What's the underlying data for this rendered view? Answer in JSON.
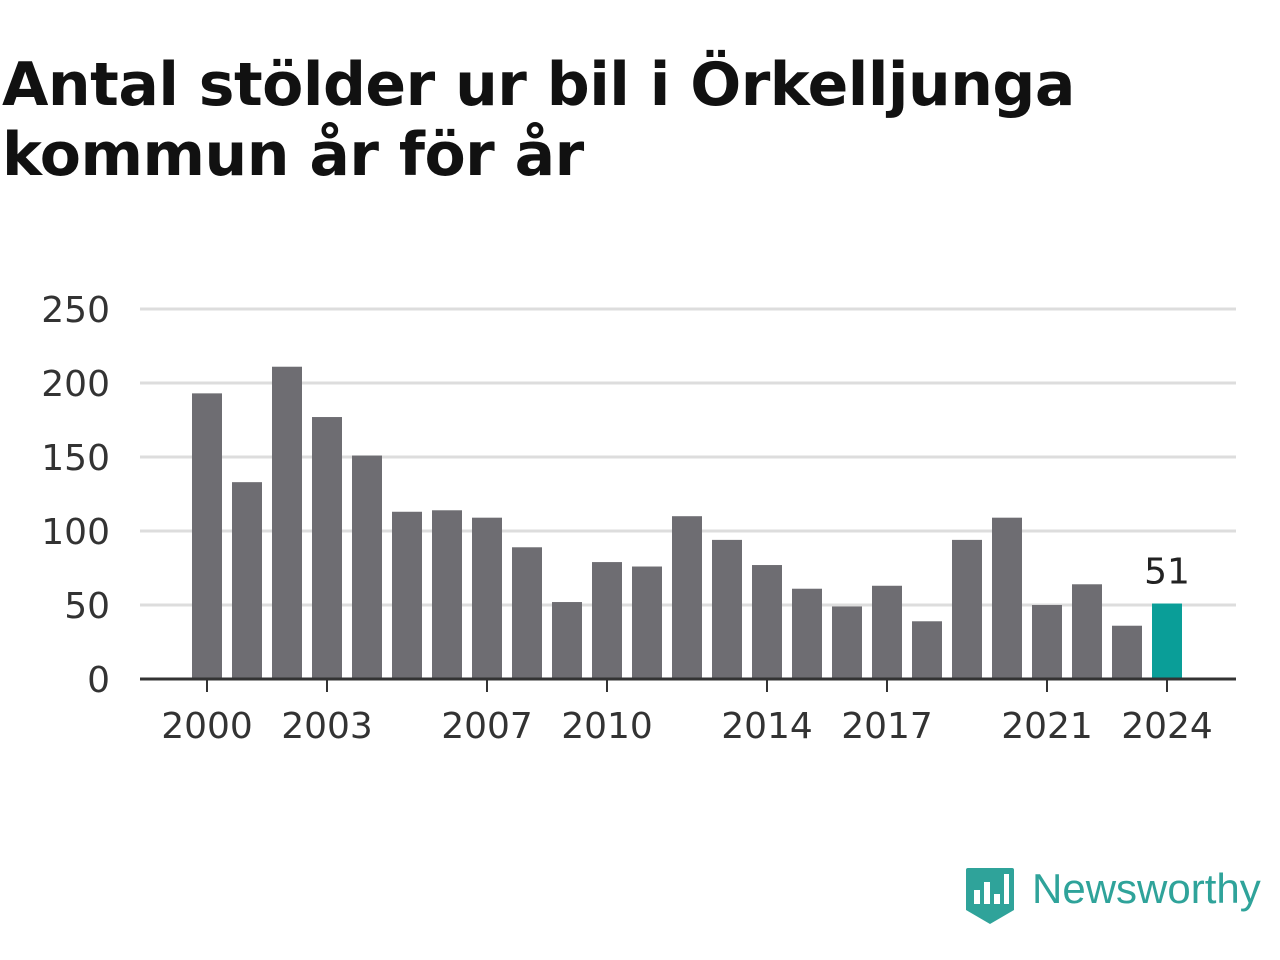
{
  "title": "Antal stölder ur bil i Örkelljunga kommun år för år",
  "brand": {
    "name": "Newsworthy",
    "icon": "newsworthy-logo-icon",
    "color": "#2fa39a"
  },
  "colors": {
    "bar": "#6e6d72",
    "highlight": "#0a9e98",
    "grid": "#dddddd",
    "axis": "#333333",
    "text": "#333333"
  },
  "chart_data": {
    "type": "bar",
    "title": "Antal stölder ur bil i Örkelljunga kommun år för år",
    "xlabel": "",
    "ylabel": "",
    "categories": [
      2000,
      2001,
      2002,
      2003,
      2004,
      2005,
      2006,
      2007,
      2008,
      2009,
      2010,
      2011,
      2012,
      2013,
      2014,
      2015,
      2016,
      2017,
      2018,
      2019,
      2020,
      2021,
      2022,
      2023,
      2024
    ],
    "values": [
      193,
      133,
      211,
      177,
      151,
      113,
      114,
      109,
      89,
      52,
      79,
      76,
      110,
      94,
      77,
      61,
      49,
      63,
      39,
      94,
      109,
      50,
      64,
      36,
      51
    ],
    "ylim": [
      0,
      250
    ],
    "yticks": [
      0,
      50,
      100,
      150,
      200,
      250
    ],
    "xticks": [
      2000,
      2003,
      2007,
      2010,
      2014,
      2017,
      2021,
      2024
    ],
    "highlight": {
      "category": 2024,
      "label": "51"
    },
    "grid": true
  }
}
